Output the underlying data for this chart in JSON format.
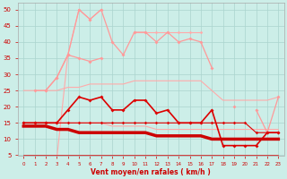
{
  "xlabel": "Vent moyen/en rafales ( km/h )",
  "background_color": "#cceee8",
  "grid_color": "#aad4ce",
  "x": [
    0,
    1,
    2,
    3,
    4,
    5,
    6,
    7,
    8,
    9,
    10,
    11,
    12,
    13,
    14,
    15,
    16,
    17,
    18,
    19,
    20,
    21,
    22,
    23
  ],
  "ylim": [
    5,
    52
  ],
  "yticks": [
    5,
    10,
    15,
    20,
    25,
    30,
    35,
    40,
    45,
    50
  ],
  "series": [
    {
      "y": [
        null,
        null,
        null,
        4,
        36,
        50,
        47,
        50,
        null,
        null,
        43,
        43,
        43,
        43,
        43,
        43,
        43,
        null,
        null,
        null,
        null,
        null,
        null,
        null
      ],
      "color": "#ffaaaa",
      "lw": 0.8,
      "marker": "D",
      "ms": 1.8,
      "zorder": 1
    },
    {
      "y": [
        25,
        25,
        25,
        25,
        26,
        26,
        27,
        27,
        27,
        27,
        28,
        28,
        28,
        28,
        28,
        28,
        28,
        25,
        22,
        22,
        22,
        22,
        22,
        23
      ],
      "color": "#ffaaaa",
      "lw": 0.8,
      "marker": null,
      "ms": 0,
      "zorder": 1
    },
    {
      "y": [
        15,
        15,
        15,
        15,
        15,
        15,
        15,
        15,
        14,
        14,
        14,
        14,
        13,
        13,
        13,
        13,
        13,
        13,
        13,
        13,
        13,
        13,
        13,
        13
      ],
      "color": "#ffaaaa",
      "lw": 0.8,
      "marker": null,
      "ms": 0,
      "zorder": 1
    },
    {
      "y": [
        null,
        null,
        25,
        29,
        36,
        50,
        47,
        50,
        40,
        36,
        43,
        43,
        40,
        43,
        40,
        41,
        40,
        32,
        null,
        null,
        null,
        null,
        null,
        null
      ],
      "color": "#ff9999",
      "lw": 0.9,
      "marker": "D",
      "ms": 2.0,
      "zorder": 2
    },
    {
      "y": [
        null,
        null,
        null,
        null,
        null,
        null,
        null,
        null,
        null,
        null,
        null,
        null,
        null,
        null,
        null,
        null,
        null,
        null,
        null,
        20,
        null,
        19,
        12,
        23
      ],
      "color": "#ff9999",
      "lw": 0.9,
      "marker": "D",
      "ms": 2.0,
      "zorder": 2
    },
    {
      "y": [
        null,
        25,
        25,
        29,
        36,
        35,
        34,
        35,
        null,
        null,
        null,
        null,
        null,
        null,
        null,
        null,
        null,
        null,
        null,
        null,
        null,
        null,
        null,
        null
      ],
      "color": "#ff9999",
      "lw": 0.9,
      "marker": "D",
      "ms": 2.0,
      "zorder": 2
    },
    {
      "y": [
        15,
        15,
        15,
        15,
        19,
        23,
        22,
        23,
        19,
        19,
        22,
        22,
        18,
        19,
        15,
        15,
        15,
        19,
        8,
        8,
        8,
        8,
        12,
        12
      ],
      "color": "#dd0000",
      "lw": 1.2,
      "marker": "D",
      "ms": 2.0,
      "zorder": 4
    },
    {
      "y": [
        15,
        15,
        15,
        15,
        15,
        15,
        15,
        15,
        15,
        15,
        15,
        15,
        15,
        15,
        15,
        15,
        15,
        15,
        15,
        15,
        15,
        12,
        12,
        12
      ],
      "color": "#dd0000",
      "lw": 0.8,
      "marker": "D",
      "ms": 1.8,
      "zorder": 3
    },
    {
      "y": [
        14,
        14,
        14,
        13,
        13,
        12,
        12,
        12,
        12,
        12,
        12,
        12,
        11,
        11,
        11,
        11,
        11,
        10,
        10,
        10,
        10,
        10,
        10,
        10
      ],
      "color": "#cc0000",
      "lw": 2.5,
      "marker": null,
      "ms": 0,
      "zorder": 5
    },
    {
      "y": [
        5,
        5,
        5,
        5,
        5,
        5,
        5,
        5,
        5,
        5,
        5,
        5,
        5,
        5,
        5,
        5,
        5,
        5,
        5,
        5,
        5,
        5,
        5,
        5
      ],
      "color": "#dd0000",
      "lw": 0.5,
      "marker": "4",
      "ms": 3.5,
      "zorder": 6
    }
  ]
}
